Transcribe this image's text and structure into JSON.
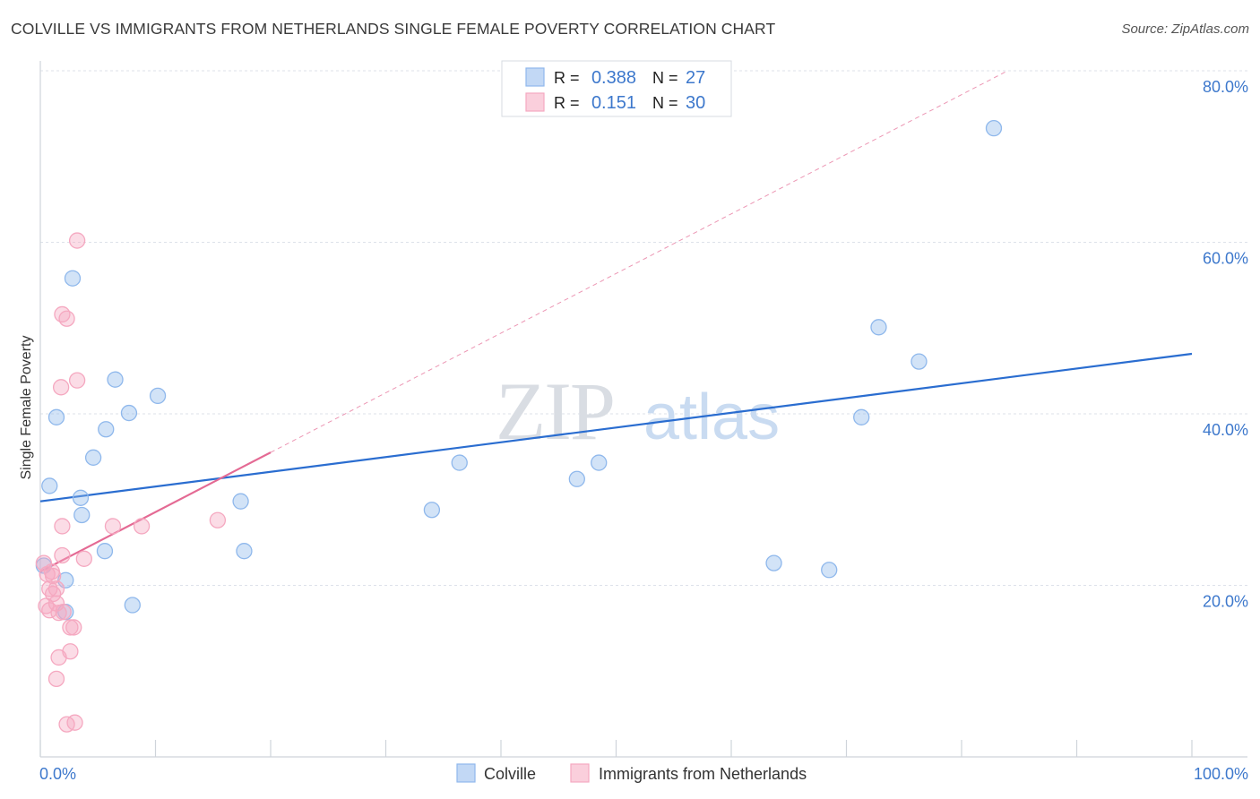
{
  "chart_data": {
    "type": "scatter",
    "title": "COLVILLE VS IMMIGRANTS FROM NETHERLANDS SINGLE FEMALE POVERTY CORRELATION CHART",
    "source": "Source: ZipAtlas.com",
    "xlabel": "",
    "ylabel": "Single Female Poverty",
    "xlim": [
      0,
      100
    ],
    "ylim": [
      0,
      80
    ],
    "x_tick_labels": [
      {
        "value": 0,
        "label": "0.0%"
      },
      {
        "value": 100,
        "label": "100.0%"
      }
    ],
    "y_tick_labels": [
      {
        "value": 20,
        "label": "20.0%"
      },
      {
        "value": 40,
        "label": "40.0%"
      },
      {
        "value": 60,
        "label": "60.0%"
      },
      {
        "value": 80,
        "label": "80.0%"
      }
    ],
    "watermark": {
      "part1": "ZIP",
      "part2": "atlas"
    },
    "legend_position": "top-center",
    "stats": [
      {
        "series": "Colville",
        "r_label": "R =",
        "r_value": "0.388",
        "n_label": "N =",
        "n_value": "27"
      },
      {
        "series": "Immigrants from Netherlands",
        "r_label": "R =",
        "r_value": "0.151",
        "n_label": "N =",
        "n_value": "30"
      }
    ],
    "series": [
      {
        "name": "Colville",
        "color": "#8fb8ec",
        "line_color": "#2a6dd0",
        "trend": {
          "x": [
            0,
            100
          ],
          "y": [
            29.8,
            47.0
          ],
          "style": "solid"
        },
        "points": [
          [
            0.8,
            31.6
          ],
          [
            2.8,
            55.8
          ],
          [
            1.4,
            39.6
          ],
          [
            3.5,
            30.2
          ],
          [
            3.6,
            28.2
          ],
          [
            2.2,
            20.6
          ],
          [
            4.6,
            34.9
          ],
          [
            5.7,
            38.2
          ],
          [
            6.5,
            44.0
          ],
          [
            7.7,
            40.1
          ],
          [
            10.2,
            42.1
          ],
          [
            5.6,
            24.0
          ],
          [
            8.0,
            17.7
          ],
          [
            17.4,
            29.8
          ],
          [
            17.7,
            24.0
          ],
          [
            34.0,
            28.8
          ],
          [
            36.4,
            34.3
          ],
          [
            46.6,
            32.4
          ],
          [
            48.5,
            34.3
          ],
          [
            63.7,
            22.6
          ],
          [
            68.5,
            21.8
          ],
          [
            71.3,
            39.6
          ],
          [
            72.8,
            50.1
          ],
          [
            76.3,
            46.1
          ],
          [
            82.8,
            73.3
          ],
          [
            0.3,
            22.3
          ],
          [
            2.2,
            16.9
          ]
        ]
      },
      {
        "name": "Immigrants from Netherlands",
        "color": "#f5a8c0",
        "line_color": "#e46a94",
        "trend": {
          "x": [
            0,
            20
          ],
          "y": [
            21.6,
            35.5
          ],
          "style": "solid"
        },
        "trend_extension": {
          "x": [
            20,
            84
          ],
          "y": [
            35.5,
            80.0
          ],
          "style": "dashed"
        },
        "points": [
          [
            3.2,
            60.2
          ],
          [
            1.9,
            51.6
          ],
          [
            2.3,
            51.1
          ],
          [
            3.2,
            43.9
          ],
          [
            1.8,
            43.1
          ],
          [
            1.9,
            26.9
          ],
          [
            6.3,
            26.9
          ],
          [
            8.8,
            26.9
          ],
          [
            15.4,
            27.6
          ],
          [
            1.9,
            23.5
          ],
          [
            3.8,
            23.1
          ],
          [
            0.3,
            22.6
          ],
          [
            1.0,
            21.6
          ],
          [
            1.1,
            21.1
          ],
          [
            0.8,
            19.6
          ],
          [
            1.1,
            19.0
          ],
          [
            1.4,
            19.6
          ],
          [
            0.5,
            17.6
          ],
          [
            0.8,
            17.1
          ],
          [
            1.4,
            17.9
          ],
          [
            1.6,
            16.8
          ],
          [
            2.6,
            15.1
          ],
          [
            2.9,
            15.1
          ],
          [
            1.6,
            11.6
          ],
          [
            2.6,
            12.3
          ],
          [
            1.4,
            9.1
          ],
          [
            2.3,
            3.8
          ],
          [
            3.0,
            4.0
          ],
          [
            0.6,
            21.3
          ],
          [
            2.0,
            16.9
          ]
        ]
      }
    ]
  }
}
